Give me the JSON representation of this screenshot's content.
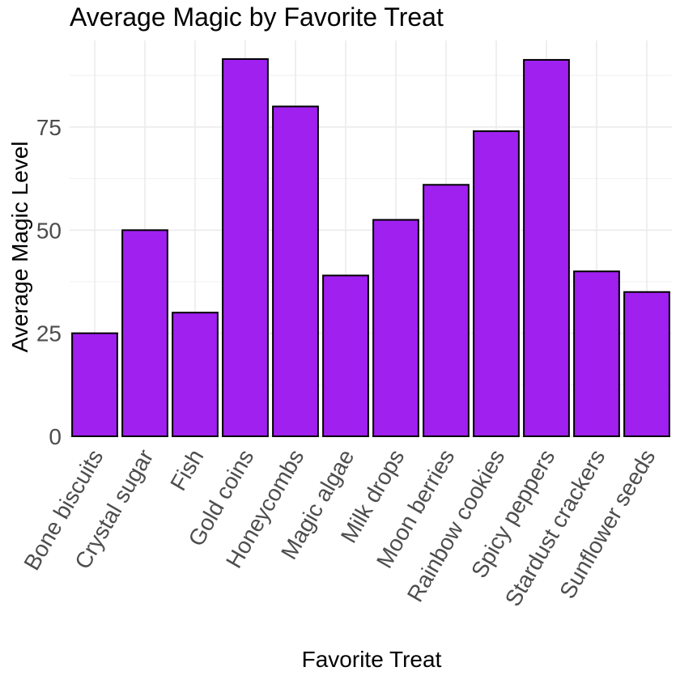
{
  "chart_data": {
    "type": "bar",
    "title": "Average Magic by Favorite Treat",
    "xlabel": "Favorite Treat",
    "ylabel": "Average Magic Level",
    "categories": [
      "Bone biscuits",
      "Crystal sugar",
      "Fish",
      "Gold coins",
      "Honeycombs",
      "Magic algae",
      "Milk drops",
      "Moon berries",
      "Rainbow cookies",
      "Spicy peppers",
      "Stardust crackers",
      "Sunflower seeds"
    ],
    "values": [
      25,
      50,
      30,
      91.5,
      80,
      39,
      52.5,
      61,
      74,
      91.3,
      40,
      35
    ],
    "ylim": [
      0,
      96
    ],
    "yticks": [
      0,
      25,
      50,
      75
    ],
    "bar_color": "#A020F0",
    "bar_outline": "#000000",
    "grid": true,
    "legend": "none"
  }
}
